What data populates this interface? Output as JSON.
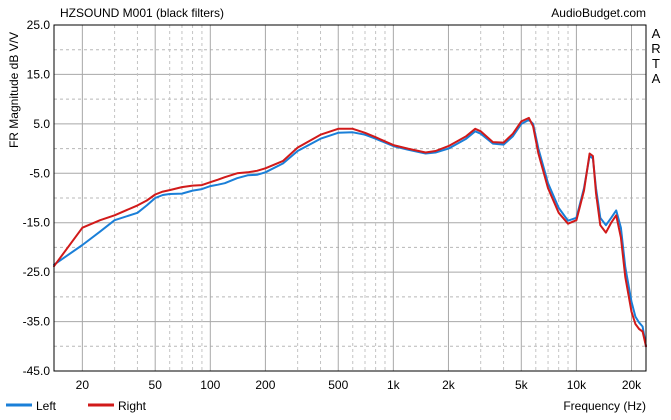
{
  "chart_data": {
    "type": "line",
    "title": "HZSOUND M001 (black filters)",
    "watermark": "AudioBudget.com",
    "side_label": [
      "A",
      "R",
      "T",
      "A"
    ],
    "xlabel": "Frequency (Hz)",
    "ylabel": "FR Magnitude dB V/V",
    "x_scale": "log",
    "xlim": [
      14,
      24000
    ],
    "ylim": [
      -45,
      25
    ],
    "y_ticks": [
      {
        "value": 25,
        "label": "25.0"
      },
      {
        "value": 15,
        "label": "15.0"
      },
      {
        "value": 5,
        "label": "5.0"
      },
      {
        "value": -5,
        "label": "-5.0"
      },
      {
        "value": -15,
        "label": "-15.0"
      },
      {
        "value": -25,
        "label": "-25.0"
      },
      {
        "value": -35,
        "label": "-35.0"
      },
      {
        "value": -45,
        "label": "-45.0"
      }
    ],
    "x_ticks": [
      {
        "value": 20,
        "label": "20"
      },
      {
        "value": 50,
        "label": "50"
      },
      {
        "value": 100,
        "label": "100"
      },
      {
        "value": 200,
        "label": "200"
      },
      {
        "value": 500,
        "label": "500"
      },
      {
        "value": 1000,
        "label": "1k"
      },
      {
        "value": 2000,
        "label": "2k"
      },
      {
        "value": 5000,
        "label": "5k"
      },
      {
        "value": 10000,
        "label": "10k"
      },
      {
        "value": 20000,
        "label": "20k"
      }
    ],
    "grid": true,
    "legend_position": "bottom-left",
    "series": [
      {
        "name": "Left",
        "color": "#1a7fd8",
        "x": [
          14,
          20,
          25,
          30,
          40,
          45,
          50,
          55,
          60,
          70,
          80,
          90,
          100,
          110,
          120,
          140,
          160,
          180,
          200,
          250,
          300,
          400,
          500,
          600,
          700,
          800,
          1000,
          1200,
          1500,
          1700,
          2000,
          2500,
          2800,
          3000,
          3500,
          4000,
          4500,
          5000,
          5500,
          5800,
          6200,
          7000,
          8000,
          9000,
          10000,
          11000,
          11800,
          12300,
          12800,
          13500,
          14500,
          15500,
          16500,
          17500,
          18500,
          20000,
          21000,
          22000,
          23000,
          24000
        ],
        "y": [
          -23.5,
          -19.5,
          -16.8,
          -14.5,
          -13,
          -11.5,
          -10,
          -9.4,
          -9.2,
          -9.1,
          -8.5,
          -8.2,
          -7.6,
          -7.3,
          -7,
          -6,
          -5.4,
          -5.3,
          -4.8,
          -3,
          -0.5,
          2,
          3.2,
          3.3,
          2.8,
          2,
          0.5,
          -0.2,
          -1,
          -0.8,
          0,
          2,
          3.5,
          3,
          1,
          0.8,
          2.5,
          5,
          5.8,
          5,
          0,
          -7,
          -12,
          -14.6,
          -14,
          -8,
          -1.5,
          -2,
          -8,
          -14,
          -15.5,
          -14,
          -12.5,
          -16,
          -24,
          -31,
          -34,
          -35.2,
          -36,
          -40
        ]
      },
      {
        "name": "Right",
        "color": "#d11a1a",
        "x": [
          14,
          20,
          25,
          30,
          40,
          45,
          50,
          55,
          60,
          70,
          80,
          90,
          100,
          110,
          120,
          140,
          160,
          180,
          200,
          250,
          300,
          400,
          500,
          600,
          700,
          800,
          1000,
          1200,
          1500,
          1700,
          2000,
          2500,
          2800,
          3000,
          3500,
          4000,
          4500,
          5000,
          5500,
          5800,
          6200,
          7000,
          8000,
          9000,
          10000,
          11000,
          11800,
          12300,
          12800,
          13500,
          14500,
          15500,
          16500,
          17500,
          18500,
          20000,
          21000,
          22000,
          23000,
          24000
        ],
        "y": [
          -23.8,
          -16,
          -14.5,
          -13.5,
          -11.5,
          -10.5,
          -9.3,
          -8.7,
          -8.4,
          -7.8,
          -7.5,
          -7.4,
          -6.8,
          -6.3,
          -5.8,
          -5,
          -4.8,
          -4.5,
          -4,
          -2.5,
          0.2,
          2.8,
          4,
          4,
          3.2,
          2.3,
          0.7,
          0,
          -0.8,
          -0.5,
          0.5,
          2.5,
          4,
          3.5,
          1.3,
          1.2,
          3,
          5.5,
          6.2,
          4.5,
          -1,
          -8,
          -13,
          -15.2,
          -14.5,
          -8.5,
          -1,
          -1.5,
          -9,
          -15.5,
          -17,
          -15,
          -13.5,
          -18,
          -26,
          -33,
          -35.5,
          -36.5,
          -37,
          -40
        ]
      }
    ]
  }
}
